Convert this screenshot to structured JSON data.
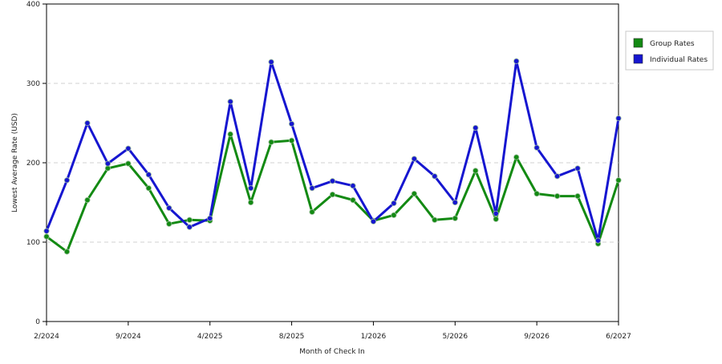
{
  "chart_data": {
    "type": "line",
    "xlabel": "Month of Check In",
    "ylabel": "Lowest Average Rate (USD)",
    "ylim": [
      0,
      400
    ],
    "yticks": [
      0,
      100,
      200,
      300,
      400
    ],
    "grid": "horizontal dashed",
    "legend_position": "right",
    "x_tick_labels": [
      "2/2024",
      "9/2024",
      "4/2025",
      "8/2025",
      "1/2026",
      "5/2026",
      "9/2026",
      "6/2027"
    ],
    "series": [
      {
        "name": "Group Rates",
        "color": "#138a13",
        "values": [
          107,
          88,
          153,
          193,
          199,
          168,
          123,
          128,
          127,
          236,
          150,
          226,
          228,
          138,
          160,
          153,
          127,
          134,
          161,
          128,
          130,
          190,
          129,
          207,
          161,
          158,
          158,
          98,
          178
        ]
      },
      {
        "name": "Individual Rates",
        "color": "#1616d0",
        "values": [
          114,
          178,
          250,
          199,
          218,
          185,
          143,
          119,
          130,
          277,
          168,
          327,
          249,
          168,
          177,
          171,
          126,
          149,
          205,
          183,
          150,
          244,
          136,
          328,
          219,
          183,
          193,
          102,
          256
        ]
      }
    ]
  }
}
